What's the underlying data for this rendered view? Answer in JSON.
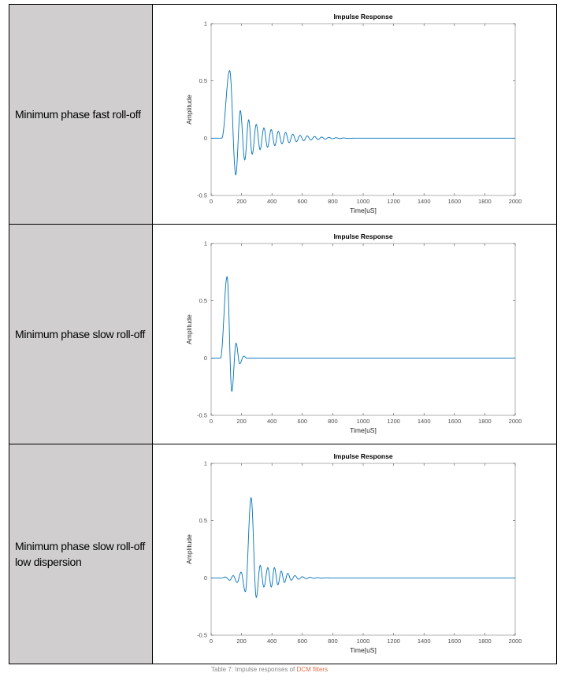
{
  "rows": [
    {
      "label_lines": [
        "Minimum phase fast roll-off"
      ]
    },
    {
      "label_lines": [
        "Minimum phase slow roll-off"
      ]
    },
    {
      "label_lines": [
        "Minimum phase slow roll-off",
        "low dispersion"
      ]
    }
  ],
  "caption": {
    "prefix": "Table 7: Impulse responses of ",
    "highlight": "DCM filters"
  },
  "colors": {
    "line": "#0072bd",
    "cell_fill": "#d0cecf"
  },
  "chart_data": [
    {
      "type": "line",
      "title": "Impulse Response",
      "xlabel": "Time[uS]",
      "ylabel": "Amplitude",
      "xlim": [
        0,
        2000
      ],
      "ylim": [
        -0.5,
        1
      ],
      "xticks": [
        "0",
        "200",
        "400",
        "600",
        "800",
        "1000",
        "1200",
        "1400",
        "1600",
        "1800",
        "2000"
      ],
      "yticks": [
        "-0.5",
        "0",
        "0.5",
        "1"
      ],
      "extrema": [
        [
          0,
          0
        ],
        [
          70,
          0
        ],
        [
          122,
          0.59
        ],
        [
          162,
          -0.32
        ],
        [
          192,
          0.24
        ],
        [
          221,
          -0.19
        ],
        [
          247,
          0.16
        ],
        [
          270,
          -0.14
        ],
        [
          297,
          0.12
        ],
        [
          322,
          -0.1
        ],
        [
          347,
          0.09
        ],
        [
          371,
          -0.08
        ],
        [
          395,
          0.075
        ],
        [
          419,
          -0.065
        ],
        [
          442,
          0.06
        ],
        [
          466,
          -0.05
        ],
        [
          490,
          0.05
        ],
        [
          513,
          -0.04
        ],
        [
          537,
          0.035
        ],
        [
          561,
          -0.03
        ],
        [
          585,
          0.025
        ],
        [
          609,
          -0.022
        ],
        [
          632,
          0.02
        ],
        [
          656,
          -0.017
        ],
        [
          680,
          0.015
        ],
        [
          703,
          -0.012
        ],
        [
          727,
          0.01
        ],
        [
          750,
          -0.008
        ],
        [
          774,
          0.007
        ],
        [
          798,
          -0.005
        ],
        [
          822,
          0.004
        ],
        [
          846,
          -0.003
        ],
        [
          870,
          0.002
        ],
        [
          894,
          -0.001
        ],
        [
          950,
          0
        ],
        [
          2000,
          0
        ]
      ]
    },
    {
      "type": "line",
      "title": "Impulse Response",
      "xlabel": "Time[uS]",
      "ylabel": "Amplitude",
      "xlim": [
        0,
        2000
      ],
      "ylim": [
        -0.5,
        1
      ],
      "xticks": [
        "0",
        "200",
        "400",
        "600",
        "800",
        "1000",
        "1200",
        "1400",
        "1600",
        "1800",
        "2000"
      ],
      "yticks": [
        "-0.5",
        "0",
        "0.5",
        "1"
      ],
      "extrema": [
        [
          0,
          0
        ],
        [
          62,
          0
        ],
        [
          105,
          0.71
        ],
        [
          136,
          -0.29
        ],
        [
          164,
          0.13
        ],
        [
          188,
          -0.05
        ],
        [
          214,
          0.016
        ],
        [
          235,
          0
        ],
        [
          2000,
          0
        ]
      ]
    },
    {
      "type": "line",
      "title": "Impulse Response",
      "xlabel": "Time[uS]",
      "ylabel": "Amplitude",
      "xlim": [
        0,
        2000
      ],
      "ylim": [
        -0.5,
        1
      ],
      "xticks": [
        "0",
        "200",
        "400",
        "600",
        "800",
        "1000",
        "1200",
        "1400",
        "1600",
        "1800",
        "2000"
      ],
      "yticks": [
        "-0.5",
        "0",
        "0.5",
        "1"
      ],
      "extrema": [
        [
          0,
          0
        ],
        [
          70,
          0
        ],
        [
          93,
          0.008
        ],
        [
          123,
          -0.02
        ],
        [
          145,
          0.02
        ],
        [
          171,
          -0.04
        ],
        [
          197,
          0.05
        ],
        [
          225,
          -0.12
        ],
        [
          263,
          0.7
        ],
        [
          297,
          -0.17
        ],
        [
          323,
          0.11
        ],
        [
          347,
          -0.08
        ],
        [
          373,
          0.09
        ],
        [
          396,
          -0.08
        ],
        [
          416,
          0.09
        ],
        [
          439,
          -0.06
        ],
        [
          461,
          0.06
        ],
        [
          482,
          -0.04
        ],
        [
          504,
          0.04
        ],
        [
          527,
          -0.02
        ],
        [
          551,
          0.02
        ],
        [
          575,
          -0.012
        ],
        [
          600,
          0.01
        ],
        [
          625,
          -0.007
        ],
        [
          650,
          0.006
        ],
        [
          675,
          -0.004
        ],
        [
          700,
          0.003
        ],
        [
          725,
          -0.002
        ],
        [
          750,
          0.001
        ],
        [
          800,
          0
        ],
        [
          2000,
          0
        ]
      ]
    }
  ]
}
